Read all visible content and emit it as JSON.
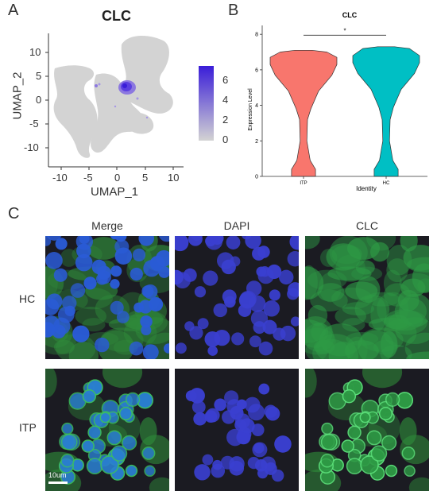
{
  "panels": {
    "a": "A",
    "b": "B",
    "c": "C"
  },
  "umap": {
    "title": "CLC",
    "xlabel": "UMAP_1",
    "ylabel": "UMAP_2",
    "xticks": [
      "-10",
      "-5",
      "0",
      "5",
      "10"
    ],
    "yticks": [
      "10",
      "5",
      "0",
      "-5",
      "-10"
    ],
    "colorbar_ticks": [
      "6",
      "4",
      "2",
      "0"
    ],
    "colors": {
      "low": "#d3d3d3",
      "high": "#3a1dd8"
    }
  },
  "chart_data": {
    "type": "violin",
    "title": "CLC",
    "xlabel": "Identity",
    "ylabel": "Expression Level",
    "categories": [
      "ITP",
      "HC"
    ],
    "yticks": [
      "0",
      "2",
      "4",
      "6",
      "8"
    ],
    "ylim": [
      0,
      8.5
    ],
    "significance": "*",
    "series": [
      {
        "name": "ITP",
        "color": "#f8766d",
        "min": 0.0,
        "max": 7.1,
        "mode": 6.3
      },
      {
        "name": "HC",
        "color": "#00bfc4",
        "min": 0.0,
        "max": 7.3,
        "mode": 6.4
      }
    ]
  },
  "micrographs": {
    "columns": [
      "Merge",
      "DAPI",
      "CLC"
    ],
    "rows": [
      "HC",
      "ITP"
    ],
    "scale_bar": "10um"
  }
}
